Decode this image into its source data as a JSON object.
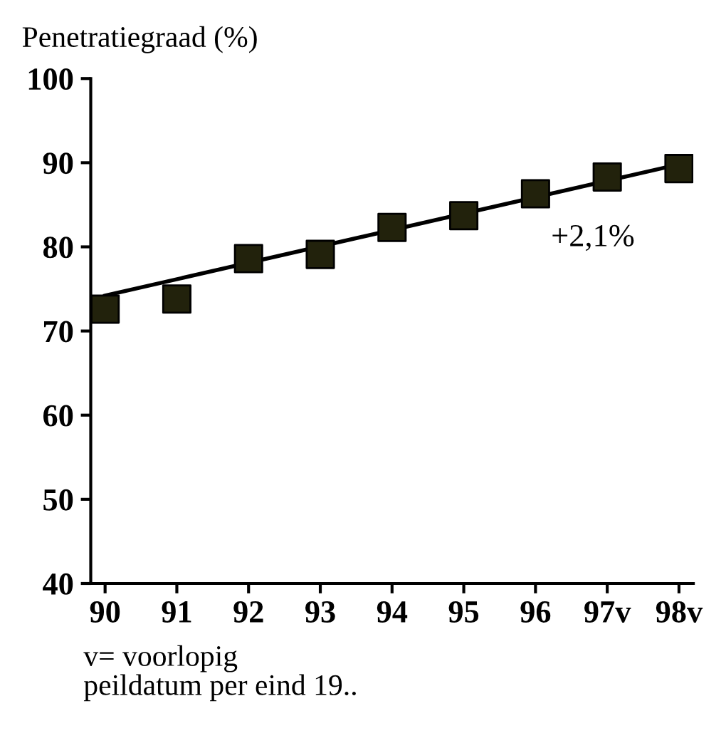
{
  "chart_data": {
    "type": "scatter",
    "ylabel": "Penetratiegraad (%)",
    "categories": [
      "90",
      "91",
      "92",
      "93",
      "94",
      "95",
      "96",
      "97v",
      "98v"
    ],
    "series": [
      {
        "color": "#22220c",
        "marker": "square",
        "values": [
          72.6,
          73.8,
          78.6,
          79.1,
          82.3,
          83.7,
          86.3,
          88.3,
          89.3
        ]
      },
      {
        "type": "line",
        "color": "#000000",
        "marker": "none",
        "values": [
          74.2,
          null,
          null,
          null,
          null,
          null,
          null,
          null,
          89.8
        ]
      }
    ],
    "ylim": [
      40,
      100
    ],
    "yticks": [
      40,
      50,
      60,
      70,
      80,
      90,
      100
    ],
    "grid": false,
    "annotations": [
      "+2,1%",
      "v= voorlopig\npeildatum per eind 19.."
    ]
  }
}
